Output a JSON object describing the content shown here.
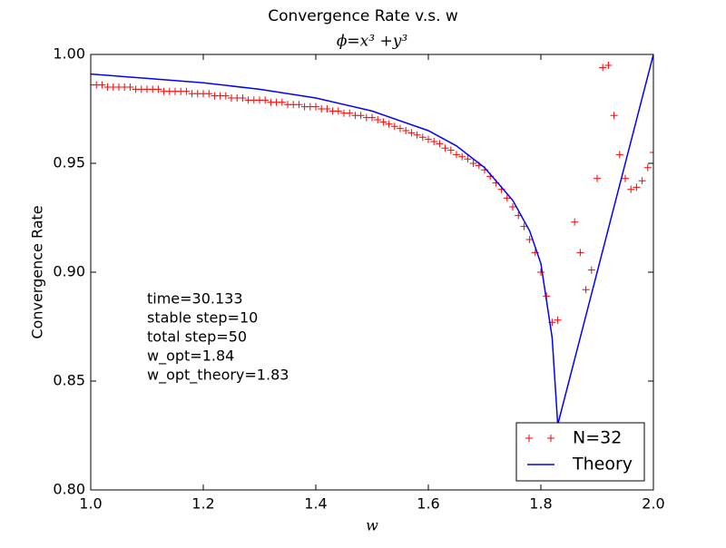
{
  "chart_data": {
    "type": "line",
    "title": "Convergence Rate v.s. w",
    "subtitle": "ϕ=x³ +y³",
    "x_label": "w",
    "y_label": "Convergence Rate",
    "annotations": [
      "time=30.133",
      "stable step=10",
      "total step=50",
      "w_opt=1.84",
      "w_opt_theory=1.83"
    ],
    "xlim": [
      1.0,
      2.0
    ],
    "ylim": [
      0.8,
      1.0
    ],
    "xticks": [
      {
        "value": 1.0,
        "label": "1.0"
      },
      1.2,
      1.4,
      1.6,
      1.8,
      {
        "value": 2.0,
        "label": "2.0"
      }
    ],
    "yticks": [
      {
        "value": 0.8,
        "label": "0.80"
      },
      0.85,
      {
        "value": 0.9,
        "label": "0.90"
      },
      0.95,
      {
        "value": 1.0,
        "label": "1.00"
      }
    ],
    "legend": "lower right",
    "series": [
      {
        "name": "N=32",
        "color": "#ff0000",
        "mode": "markers",
        "x": [
          1.0,
          1.01,
          1.02,
          1.03,
          1.04,
          1.05,
          1.06,
          1.07,
          1.08,
          1.09,
          1.1,
          1.11,
          1.12,
          1.13,
          1.14,
          1.15,
          1.16,
          1.17,
          1.18,
          1.19,
          1.2,
          1.21,
          1.22,
          1.23,
          1.24,
          1.25,
          1.26,
          1.27,
          1.28,
          1.29,
          1.3,
          1.31,
          1.32,
          1.33,
          1.34,
          1.35,
          1.36,
          1.37,
          1.38,
          1.39,
          1.4,
          1.41,
          1.42,
          1.43,
          1.44,
          1.45,
          1.46,
          1.47,
          1.48,
          1.49,
          1.5,
          1.51,
          1.52,
          1.53,
          1.54,
          1.55,
          1.56,
          1.57,
          1.58,
          1.59,
          1.6,
          1.61,
          1.62,
          1.63,
          1.64,
          1.65,
          1.66,
          1.67,
          1.68,
          1.69,
          1.7,
          1.71,
          1.72,
          1.73,
          1.74,
          1.75,
          1.76,
          1.77,
          1.78,
          1.79,
          1.8,
          1.81,
          1.82,
          1.83,
          1.86,
          1.87,
          1.88,
          1.89,
          1.9,
          1.91,
          1.92,
          1.93,
          1.94,
          1.95,
          1.96,
          1.97,
          1.98,
          1.99,
          2.0
        ],
        "values": [
          0.986,
          0.986,
          0.986,
          0.985,
          0.985,
          0.985,
          0.985,
          0.985,
          0.984,
          0.984,
          0.984,
          0.984,
          0.984,
          0.983,
          0.983,
          0.983,
          0.983,
          0.983,
          0.982,
          0.982,
          0.982,
          0.982,
          0.981,
          0.981,
          0.981,
          0.98,
          0.98,
          0.98,
          0.979,
          0.979,
          0.979,
          0.979,
          0.978,
          0.978,
          0.978,
          0.977,
          0.977,
          0.977,
          0.976,
          0.976,
          0.976,
          0.975,
          0.975,
          0.974,
          0.974,
          0.973,
          0.973,
          0.972,
          0.972,
          0.971,
          0.971,
          0.97,
          0.969,
          0.968,
          0.967,
          0.966,
          0.965,
          0.964,
          0.963,
          0.962,
          0.961,
          0.96,
          0.959,
          0.957,
          0.956,
          0.954,
          0.953,
          0.952,
          0.95,
          0.949,
          0.947,
          0.944,
          0.941,
          0.938,
          0.934,
          0.93,
          0.926,
          0.921,
          0.915,
          0.909,
          0.9,
          0.889,
          0.877,
          0.878,
          0.923,
          0.909,
          0.892,
          0.901,
          0.943,
          0.994,
          0.995,
          0.972,
          0.954,
          0.943,
          0.938,
          0.939,
          0.942,
          0.948,
          0.955
        ]
      },
      {
        "name": "Theory",
        "color": "#0000ff",
        "mode": "line",
        "x": [
          1.0,
          1.1,
          1.2,
          1.3,
          1.4,
          1.5,
          1.6,
          1.65,
          1.7,
          1.75,
          1.78,
          1.8,
          1.82,
          1.83,
          2.0
        ],
        "values": [
          0.991,
          0.989,
          0.987,
          0.984,
          0.98,
          0.974,
          0.965,
          0.958,
          0.948,
          0.933,
          0.919,
          0.904,
          0.87,
          0.83,
          1.0
        ]
      }
    ]
  }
}
